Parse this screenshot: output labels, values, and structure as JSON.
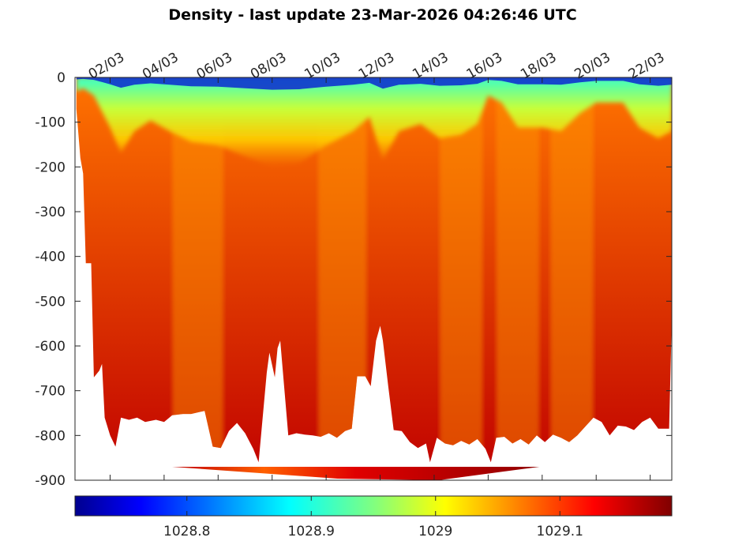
{
  "chart_data": {
    "type": "heatmap",
    "title": "Density - last update 23-Mar-2026 04:26:46 UTC",
    "xlabel": "",
    "ylabel": "",
    "x_tick_labels": [
      "02/03",
      "04/03",
      "06/03",
      "08/03",
      "10/03",
      "12/03",
      "14/03",
      "16/03",
      "18/03",
      "20/03",
      "22/03"
    ],
    "x_tick_days": [
      2,
      4,
      6,
      8,
      10,
      12,
      14,
      16,
      18,
      20,
      22
    ],
    "xlim_days": [
      0.7,
      22.8
    ],
    "y_tick_values": [
      0,
      -100,
      -200,
      -300,
      -400,
      -500,
      -600,
      -700,
      -800,
      -900
    ],
    "ylim": [
      -900,
      0
    ],
    "colorbar": {
      "colormap": "jet",
      "range": [
        1028.71,
        1029.19
      ],
      "tick_values": [
        1028.8,
        1028.9,
        1029,
        1029.1
      ],
      "tick_labels": [
        "1028.8",
        "1028.9",
        "1029",
        "1029.1"
      ]
    },
    "profile_bottom_depth": [
      [
        0.75,
        -70
      ],
      [
        0.9,
        -180
      ],
      [
        1.0,
        -215
      ],
      [
        1.1,
        -415
      ],
      [
        1.3,
        -415
      ],
      [
        1.4,
        -670
      ],
      [
        1.6,
        -655
      ],
      [
        1.7,
        -640
      ],
      [
        1.8,
        -760
      ],
      [
        2.0,
        -800
      ],
      [
        2.2,
        -825
      ],
      [
        2.4,
        -760
      ],
      [
        2.7,
        -765
      ],
      [
        3.0,
        -760
      ],
      [
        3.3,
        -770
      ],
      [
        3.7,
        -765
      ],
      [
        4.0,
        -770
      ],
      [
        4.3,
        -755
      ],
      [
        4.7,
        -752
      ],
      [
        5.0,
        -752
      ],
      [
        5.5,
        -745
      ],
      [
        5.8,
        -825
      ],
      [
        6.1,
        -828
      ],
      [
        6.4,
        -790
      ],
      [
        6.7,
        -772
      ],
      [
        7.0,
        -795
      ],
      [
        7.3,
        -830
      ],
      [
        7.5,
        -860
      ],
      [
        7.8,
        -660
      ],
      [
        7.9,
        -615
      ],
      [
        8.1,
        -670
      ],
      [
        8.2,
        -605
      ],
      [
        8.3,
        -588
      ],
      [
        8.6,
        -800
      ],
      [
        8.9,
        -795
      ],
      [
        9.2,
        -798
      ],
      [
        9.5,
        -800
      ],
      [
        9.8,
        -803
      ],
      [
        10.1,
        -795
      ],
      [
        10.4,
        -805
      ],
      [
        10.7,
        -790
      ],
      [
        10.95,
        -785
      ],
      [
        11.15,
        -668
      ],
      [
        11.45,
        -668
      ],
      [
        11.65,
        -690
      ],
      [
        11.85,
        -588
      ],
      [
        12.0,
        -555
      ],
      [
        12.1,
        -588
      ],
      [
        12.3,
        -690
      ],
      [
        12.5,
        -788
      ],
      [
        12.8,
        -790
      ],
      [
        13.1,
        -815
      ],
      [
        13.4,
        -828
      ],
      [
        13.7,
        -818
      ],
      [
        13.85,
        -860
      ],
      [
        14.1,
        -805
      ],
      [
        14.4,
        -818
      ],
      [
        14.7,
        -822
      ],
      [
        15.0,
        -812
      ],
      [
        15.3,
        -820
      ],
      [
        15.6,
        -808
      ],
      [
        15.9,
        -830
      ],
      [
        16.1,
        -860
      ],
      [
        16.3,
        -805
      ],
      [
        16.6,
        -803
      ],
      [
        16.9,
        -818
      ],
      [
        17.2,
        -808
      ],
      [
        17.5,
        -820
      ],
      [
        17.8,
        -800
      ],
      [
        18.1,
        -815
      ],
      [
        18.4,
        -798
      ],
      [
        18.7,
        -805
      ],
      [
        19.0,
        -815
      ],
      [
        19.3,
        -800
      ],
      [
        19.6,
        -780
      ],
      [
        19.9,
        -760
      ],
      [
        20.2,
        -770
      ],
      [
        20.5,
        -800
      ],
      [
        20.8,
        -778
      ],
      [
        21.1,
        -780
      ],
      [
        21.4,
        -788
      ],
      [
        21.7,
        -770
      ],
      [
        22.0,
        -760
      ],
      [
        22.3,
        -785
      ],
      [
        22.7,
        -785
      ],
      [
        22.8,
        -540
      ]
    ],
    "surface_layer_depth": [
      [
        0.75,
        -20
      ],
      [
        1.0,
        -15
      ],
      [
        1.4,
        -25
      ],
      [
        2.0,
        -70
      ],
      [
        2.4,
        -105
      ],
      [
        2.9,
        -75
      ],
      [
        3.5,
        -60
      ],
      [
        4.2,
        -75
      ],
      [
        5.0,
        -90
      ],
      [
        6.0,
        -95
      ],
      [
        7.0,
        -110
      ],
      [
        8.0,
        -125
      ],
      [
        9.0,
        -120
      ],
      [
        10.0,
        -95
      ],
      [
        11.0,
        -75
      ],
      [
        11.6,
        -55
      ],
      [
        12.1,
        -115
      ],
      [
        12.7,
        -75
      ],
      [
        13.5,
        -65
      ],
      [
        14.2,
        -85
      ],
      [
        15.0,
        -80
      ],
      [
        15.6,
        -65
      ],
      [
        16.0,
        -25
      ],
      [
        16.5,
        -35
      ],
      [
        17.1,
        -70
      ],
      [
        18.0,
        -70
      ],
      [
        18.7,
        -75
      ],
      [
        19.4,
        -50
      ],
      [
        20.0,
        -35
      ],
      [
        21.0,
        -35
      ],
      [
        21.6,
        -70
      ],
      [
        22.3,
        -85
      ],
      [
        22.8,
        -75
      ]
    ],
    "shallow_band_boundaries_days": [
      4.3,
      6.2,
      9.7,
      11.5,
      14.2,
      15.8,
      16.3,
      17.9,
      18.3,
      19.9
    ],
    "lowest_bin_segment": {
      "x_days": [
        4.3,
        17.9
      ],
      "depth": [
        -870,
        -900
      ]
    }
  }
}
